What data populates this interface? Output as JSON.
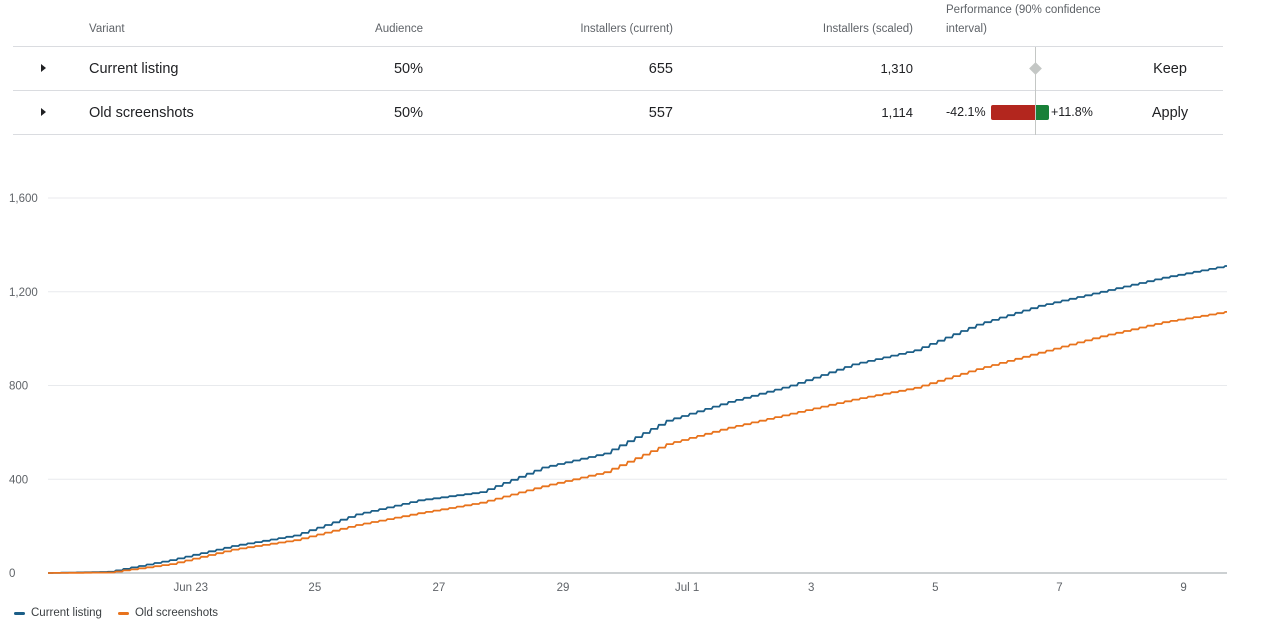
{
  "table": {
    "headers": {
      "variant": "Variant",
      "audience": "Audience",
      "installers_current": "Installers (current)",
      "installers_scaled": "Installers (scaled)",
      "performance": "Performance (90% confidence interval)"
    },
    "rows": [
      {
        "variant": "Current listing",
        "audience": "50%",
        "installers_current": "655",
        "installers_scaled": "1,310",
        "action": "Keep"
      },
      {
        "variant": "Old screenshots",
        "audience": "50%",
        "installers_current": "557",
        "installers_scaled": "1,114",
        "action": "Apply",
        "ci_low": "-42.1%",
        "ci_high": "+11.8%"
      }
    ]
  },
  "colors": {
    "current": "#1b5e87",
    "old": "#e8731d",
    "ci_negative": "#b3261e",
    "ci_positive": "#188038"
  },
  "chart_data": {
    "type": "line",
    "y_ticks": [
      "0",
      "400",
      "800",
      "1,200",
      "1,600"
    ],
    "ylim": [
      0,
      1600
    ],
    "x_ticks": [
      "Jun 23",
      "25",
      "27",
      "29",
      "Jul 1",
      "3",
      "5",
      "7",
      "9"
    ],
    "xlim": [
      "2024-06-21",
      "2024-07-10"
    ],
    "grid": true,
    "legend_position": "bottom-left",
    "x": [
      "2024-06-21",
      "2024-06-22",
      "2024-06-23",
      "2024-06-24",
      "2024-06-25",
      "2024-06-26",
      "2024-06-27",
      "2024-06-28",
      "2024-06-29",
      "2024-06-30",
      "2024-07-01",
      "2024-07-02",
      "2024-07-03",
      "2024-07-04",
      "2024-07-05",
      "2024-07-06",
      "2024-07-07",
      "2024-07-08",
      "2024-07-09",
      "2024-07-10"
    ],
    "series": [
      {
        "name": "Current listing",
        "values": [
          0,
          5,
          55,
          115,
          160,
          250,
          310,
          345,
          450,
          510,
          650,
          730,
          800,
          890,
          950,
          1060,
          1140,
          1200,
          1260,
          1310
        ]
      },
      {
        "name": "Old screenshots",
        "values": [
          0,
          2,
          38,
          100,
          140,
          205,
          255,
          300,
          370,
          430,
          550,
          620,
          680,
          740,
          790,
          870,
          940,
          1010,
          1070,
          1114
        ]
      }
    ]
  },
  "legend": {
    "current": "Current listing",
    "old": "Old screenshots"
  }
}
